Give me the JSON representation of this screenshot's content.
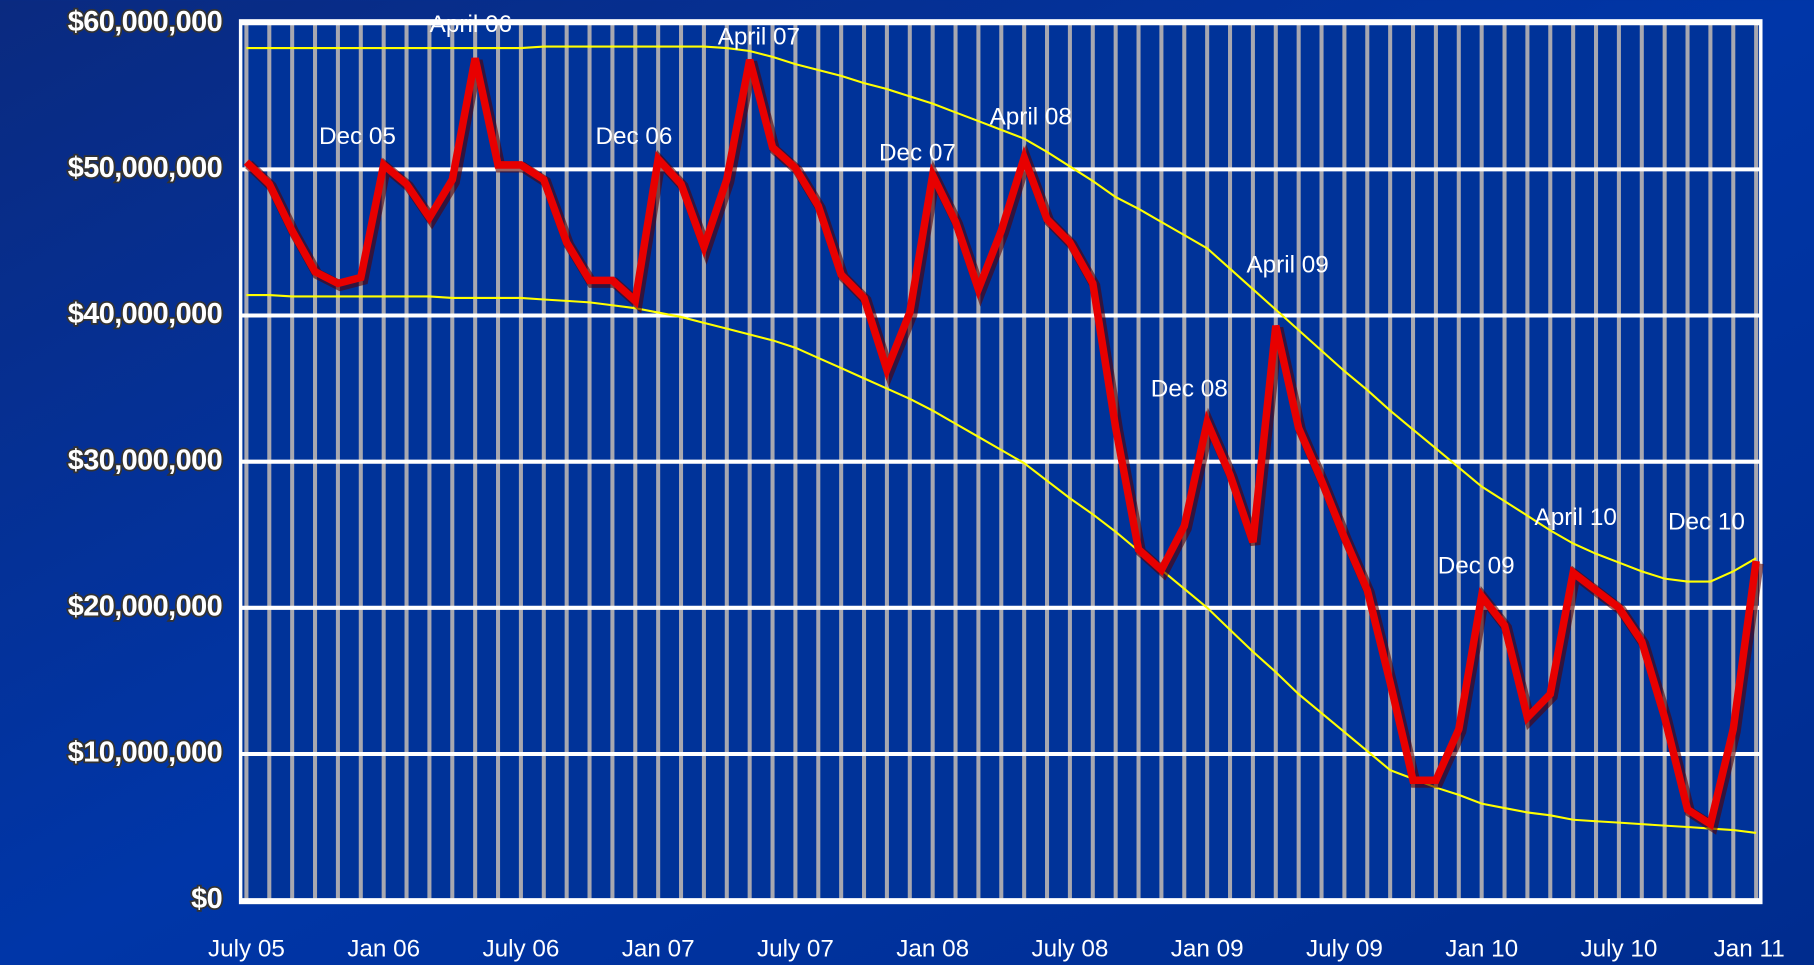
{
  "chart_data": {
    "type": "line",
    "categories": [
      "July 05",
      null,
      null,
      null,
      null,
      null,
      "Jan 06",
      null,
      null,
      null,
      null,
      null,
      "July 06",
      null,
      null,
      null,
      null,
      null,
      "Jan 07",
      null,
      null,
      null,
      null,
      null,
      "July 07",
      null,
      null,
      null,
      null,
      null,
      "Jan 08",
      null,
      null,
      null,
      null,
      null,
      "July 08",
      null,
      null,
      null,
      null,
      null,
      "Jan 09",
      null,
      null,
      null,
      null,
      null,
      "July 09",
      null,
      null,
      null,
      null,
      null,
      "Jan 10",
      null,
      null,
      null,
      null,
      null,
      "July 10",
      null,
      null,
      null,
      null,
      null,
      "Jan 11"
    ],
    "series": [
      {
        "color": "#e80000",
        "values": [
          50500000,
          49000000,
          45800000,
          43000000,
          42200000,
          42600000,
          50300000,
          49000000,
          46700000,
          49300000,
          57600000,
          50300000,
          50300000,
          49300000,
          45000000,
          42400000,
          42400000,
          41000000,
          50700000,
          49000000,
          44700000,
          49300000,
          57500000,
          51500000,
          50100000,
          47500000,
          42800000,
          41200000,
          36300000,
          40200000,
          49600000,
          46400000,
          41800000,
          45800000,
          50800000,
          46600000,
          45000000,
          42200000,
          32300000,
          24000000,
          22600000,
          25600000,
          32700000,
          29100000,
          24500000,
          39300000,
          32300000,
          28700000,
          24800000,
          21200000,
          14900000,
          8200000,
          8200000,
          11700000,
          20800000,
          18800000,
          12500000,
          14100000,
          22400000,
          21200000,
          20000000,
          17700000,
          12500000,
          6200000,
          5200000,
          11700000,
          23200000
        ]
      },
      {
        "color": "#ffff00",
        "values": [
          58300000,
          58300000,
          58300000,
          58300000,
          58300000,
          58300000,
          58300000,
          58300000,
          58300000,
          58300000,
          58300000,
          58300000,
          58300000,
          58400000,
          58400000,
          58400000,
          58400000,
          58400000,
          58400000,
          58400000,
          58400000,
          58300000,
          58100000,
          57700000,
          57200000,
          56800000,
          56400000,
          55900000,
          55500000,
          55000000,
          54500000,
          53900000,
          53300000,
          52700000,
          52100000,
          51200000,
          50200000,
          49200000,
          48100000,
          47300000,
          46400000,
          45500000,
          44600000,
          43200000,
          41800000,
          40400000,
          39000000,
          37600000,
          36200000,
          34900000,
          33500000,
          32200000,
          30900000,
          29600000,
          28300000,
          27300000,
          26300000,
          25300000,
          24400000,
          23700000,
          23100000,
          22500000,
          22000000,
          21800000,
          21800000,
          22500000,
          23400000
        ]
      },
      {
        "color": "#ffff00",
        "values": [
          41400000,
          41400000,
          41300000,
          41300000,
          41300000,
          41300000,
          41300000,
          41300000,
          41300000,
          41200000,
          41200000,
          41200000,
          41200000,
          41100000,
          41000000,
          40900000,
          40700000,
          40500000,
          40200000,
          39900000,
          39500000,
          39100000,
          38700000,
          38300000,
          37800000,
          37100000,
          36400000,
          35700000,
          35000000,
          34300000,
          33500000,
          32600000,
          31700000,
          30800000,
          29900000,
          28700000,
          27500000,
          26400000,
          25200000,
          23900000,
          22600000,
          21300000,
          20000000,
          18500000,
          17000000,
          15600000,
          14100000,
          12800000,
          11500000,
          10200000,
          8900000,
          8300000,
          7700000,
          7200000,
          6600000,
          6300000,
          6000000,
          5800000,
          5500000,
          5400000,
          5300000,
          5200000,
          5100000,
          5000000,
          4900000,
          4800000,
          4600000
        ]
      }
    ],
    "ylim": [
      0,
      60000000
    ],
    "yticks": [
      {
        "value": 0,
        "label": "$0"
      },
      {
        "value": 10000000,
        "label": "$10,000,000"
      },
      {
        "value": 20000000,
        "label": "$20,000,000"
      },
      {
        "value": 30000000,
        "label": "$30,000,000"
      },
      {
        "value": 40000000,
        "label": "$40,000,000"
      },
      {
        "value": 50000000,
        "label": "$50,000,000"
      },
      {
        "value": 60000000,
        "label": "$60,000,000"
      }
    ],
    "grid": true,
    "annotations": [
      "April 06",
      "April 07",
      "Dec 05",
      "Dec 06",
      "April 08",
      "Dec 07",
      "April 09",
      "Dec 08",
      "April 10",
      "Dec 10",
      "Dec 09"
    ]
  }
}
